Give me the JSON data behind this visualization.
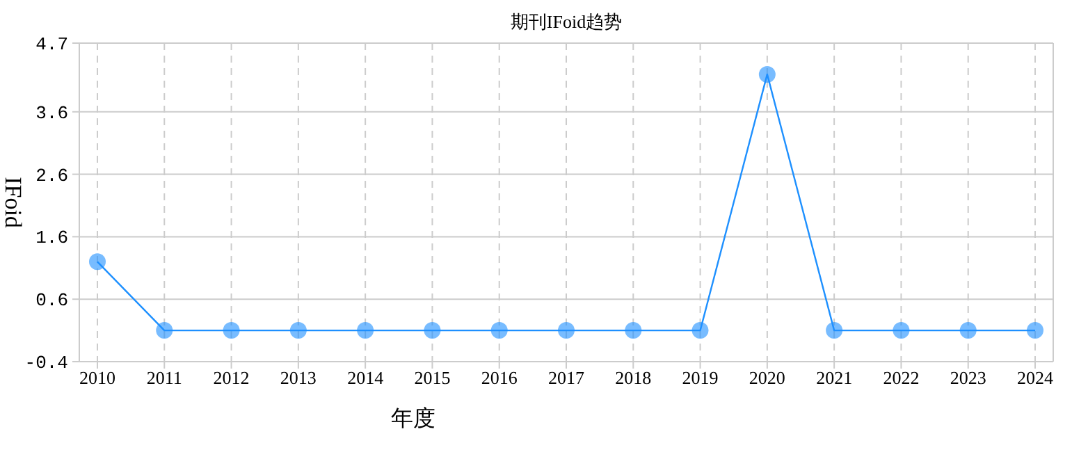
{
  "chart_data": {
    "type": "line",
    "title": "期刊IFoid趋势",
    "xlabel": "年度",
    "ylabel": "IFoid",
    "categories": [
      "2010",
      "2011",
      "2012",
      "2013",
      "2014",
      "2015",
      "2016",
      "2017",
      "2018",
      "2019",
      "2020",
      "2021",
      "2022",
      "2023",
      "2024"
    ],
    "series": [
      {
        "color": "#1e90ff",
        "values": [
          1.2,
          0.1,
          0.1,
          0.1,
          0.1,
          0.1,
          0.1,
          0.1,
          0.1,
          0.1,
          4.2,
          0.1,
          0.1,
          0.1,
          0.1
        ]
      }
    ],
    "ylim": [
      -0.4,
      4.7
    ],
    "yticks": [
      -0.4,
      0.6,
      1.6,
      2.6,
      3.6,
      4.7
    ],
    "grid": true,
    "marker": "circle",
    "line_style": "solid"
  }
}
